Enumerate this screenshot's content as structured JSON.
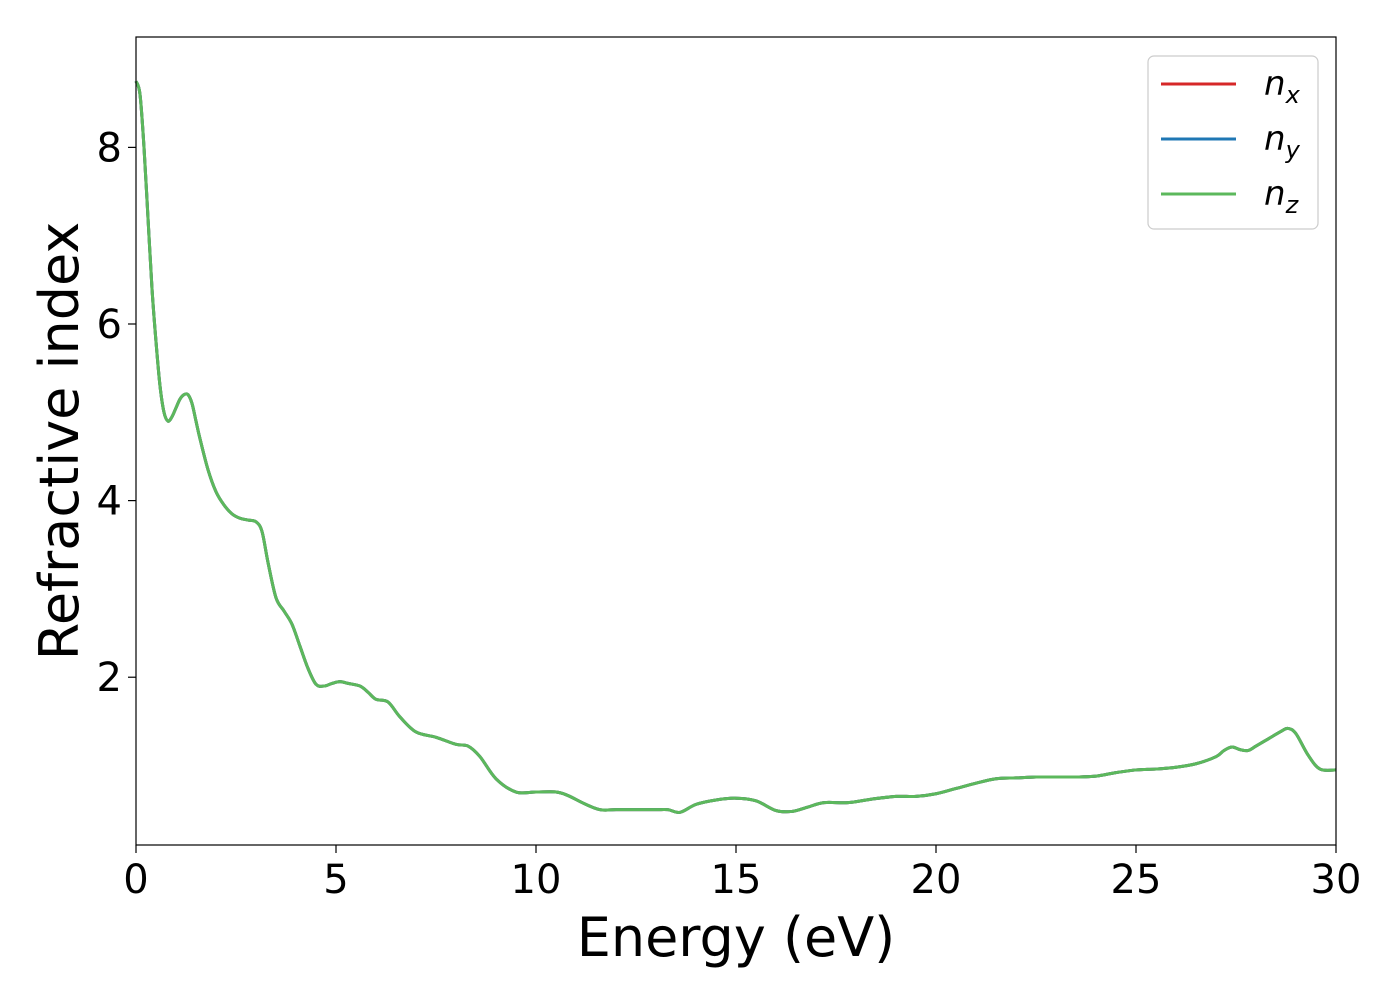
{
  "chart_data": {
    "type": "line",
    "title": "",
    "xlabel": "Energy (eV)",
    "ylabel": "Refractive index",
    "xlim": [
      0,
      30
    ],
    "ylim": [
      0.1,
      9.25
    ],
    "xticks": [
      0,
      5,
      10,
      15,
      20,
      25,
      30
    ],
    "xtick_labels": [
      "0",
      "5",
      "10",
      "15",
      "20",
      "25",
      "30"
    ],
    "yticks": [
      2,
      4,
      6,
      8
    ],
    "ytick_labels": [
      "2",
      "4",
      "6",
      "8"
    ],
    "grid": false,
    "legend_position": "top-right",
    "x": [
      0,
      0.1,
      0.2,
      0.3,
      0.4,
      0.5,
      0.6,
      0.7,
      0.8,
      0.9,
      1.0,
      1.1,
      1.2,
      1.3,
      1.4,
      1.5,
      1.6,
      1.8,
      2.0,
      2.2,
      2.4,
      2.6,
      2.8,
      3.0,
      3.15,
      3.3,
      3.5,
      3.7,
      3.9,
      4.1,
      4.3,
      4.5,
      4.7,
      4.9,
      5.1,
      5.3,
      5.6,
      5.8,
      6.0,
      6.3,
      6.6,
      7.0,
      7.5,
      8.0,
      8.3,
      8.6,
      9.0,
      9.5,
      10.0,
      10.5,
      10.8,
      11.2,
      11.6,
      12.0,
      12.5,
      13.0,
      13.3,
      13.6,
      14.0,
      14.5,
      15.0,
      15.5,
      16.0,
      16.4,
      16.8,
      17.2,
      17.8,
      18.4,
      19.0,
      19.5,
      20.0,
      20.5,
      21.0,
      21.5,
      22.0,
      22.5,
      23.0,
      23.5,
      24.0,
      24.5,
      25.0,
      25.5,
      26.0,
      26.5,
      27.0,
      27.2,
      27.4,
      27.6,
      27.8,
      28.0,
      28.3,
      28.6,
      28.8,
      29.0,
      29.3,
      29.6,
      30.0
    ],
    "series": [
      {
        "name": "n_x",
        "color": "#d62728",
        "values": [
          8.75,
          8.6,
          8.0,
          7.2,
          6.4,
          5.8,
          5.3,
          5.0,
          4.9,
          4.95,
          5.05,
          5.15,
          5.2,
          5.2,
          5.1,
          4.9,
          4.7,
          4.35,
          4.1,
          3.95,
          3.85,
          3.8,
          3.78,
          3.76,
          3.65,
          3.3,
          2.9,
          2.75,
          2.6,
          2.35,
          2.1,
          1.92,
          1.9,
          1.93,
          1.95,
          1.93,
          1.9,
          1.83,
          1.75,
          1.72,
          1.55,
          1.38,
          1.32,
          1.24,
          1.22,
          1.1,
          0.85,
          0.7,
          0.7,
          0.7,
          0.66,
          0.57,
          0.5,
          0.5,
          0.5,
          0.5,
          0.5,
          0.47,
          0.56,
          0.61,
          0.63,
          0.6,
          0.49,
          0.48,
          0.53,
          0.58,
          0.58,
          0.62,
          0.65,
          0.65,
          0.68,
          0.74,
          0.8,
          0.85,
          0.86,
          0.87,
          0.87,
          0.87,
          0.88,
          0.92,
          0.95,
          0.96,
          0.98,
          1.02,
          1.1,
          1.17,
          1.21,
          1.18,
          1.17,
          1.22,
          1.3,
          1.38,
          1.42,
          1.36,
          1.12,
          0.96,
          0.95
        ]
      },
      {
        "name": "n_y",
        "color": "#1f77b4",
        "values": [
          8.75,
          8.6,
          8.0,
          7.2,
          6.4,
          5.8,
          5.3,
          5.0,
          4.9,
          4.95,
          5.05,
          5.15,
          5.2,
          5.2,
          5.1,
          4.9,
          4.7,
          4.35,
          4.1,
          3.95,
          3.85,
          3.8,
          3.78,
          3.76,
          3.65,
          3.3,
          2.9,
          2.75,
          2.6,
          2.35,
          2.1,
          1.92,
          1.9,
          1.93,
          1.95,
          1.93,
          1.9,
          1.83,
          1.75,
          1.72,
          1.55,
          1.38,
          1.32,
          1.24,
          1.22,
          1.1,
          0.85,
          0.7,
          0.7,
          0.7,
          0.66,
          0.57,
          0.5,
          0.5,
          0.5,
          0.5,
          0.5,
          0.47,
          0.56,
          0.61,
          0.63,
          0.6,
          0.49,
          0.48,
          0.53,
          0.58,
          0.58,
          0.62,
          0.65,
          0.65,
          0.68,
          0.74,
          0.8,
          0.85,
          0.86,
          0.87,
          0.87,
          0.87,
          0.88,
          0.92,
          0.95,
          0.96,
          0.98,
          1.02,
          1.1,
          1.17,
          1.21,
          1.18,
          1.17,
          1.22,
          1.3,
          1.38,
          1.42,
          1.36,
          1.12,
          0.96,
          0.95
        ]
      },
      {
        "name": "n_z",
        "color": "#5cb85c",
        "values": [
          8.75,
          8.6,
          8.0,
          7.2,
          6.4,
          5.8,
          5.3,
          5.0,
          4.9,
          4.95,
          5.05,
          5.15,
          5.2,
          5.2,
          5.1,
          4.9,
          4.7,
          4.35,
          4.1,
          3.95,
          3.85,
          3.8,
          3.78,
          3.76,
          3.65,
          3.3,
          2.9,
          2.75,
          2.6,
          2.35,
          2.1,
          1.92,
          1.9,
          1.93,
          1.95,
          1.93,
          1.9,
          1.83,
          1.75,
          1.72,
          1.55,
          1.38,
          1.32,
          1.24,
          1.22,
          1.1,
          0.85,
          0.7,
          0.7,
          0.7,
          0.66,
          0.57,
          0.5,
          0.5,
          0.5,
          0.5,
          0.5,
          0.47,
          0.56,
          0.61,
          0.63,
          0.6,
          0.49,
          0.48,
          0.53,
          0.58,
          0.58,
          0.62,
          0.65,
          0.65,
          0.68,
          0.74,
          0.8,
          0.85,
          0.86,
          0.87,
          0.87,
          0.87,
          0.88,
          0.92,
          0.95,
          0.96,
          0.98,
          1.02,
          1.1,
          1.17,
          1.21,
          1.18,
          1.17,
          1.22,
          1.3,
          1.38,
          1.42,
          1.36,
          1.12,
          0.96,
          0.95
        ]
      }
    ],
    "legend": [
      {
        "base": "n",
        "sub": "x",
        "color": "#d62728"
      },
      {
        "base": "n",
        "sub": "y",
        "color": "#1f77b4"
      },
      {
        "base": "n",
        "sub": "z",
        "color": "#5cb85c"
      }
    ]
  }
}
